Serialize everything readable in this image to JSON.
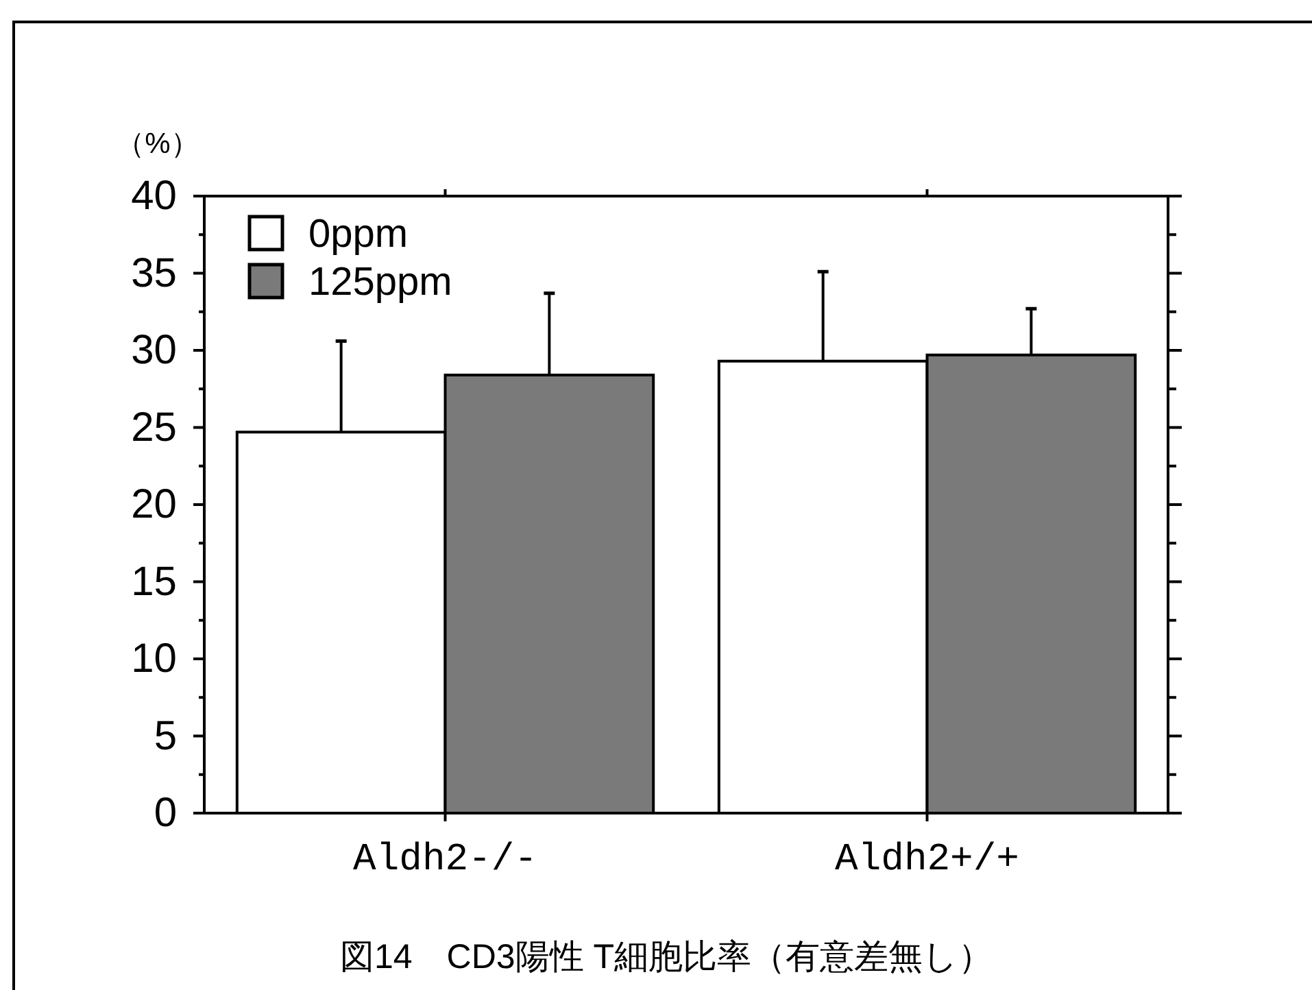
{
  "chart_data": {
    "type": "bar",
    "title": "図14　CD3陽性 T細胞比率（有意差無し）",
    "ylabel": "（%）",
    "categories": [
      "Aldh2-/-",
      "Aldh2+/+"
    ],
    "series": [
      {
        "name": "0ppm",
        "color": "#ffffff",
        "values": [
          24.7,
          29.3
        ],
        "errors": [
          [
            24.7,
            30.6
          ],
          [
            29.3,
            35.1
          ]
        ]
      },
      {
        "name": "125ppm",
        "color": "#7a7a7a",
        "values": [
          28.4,
          29.7
        ],
        "errors": [
          [
            28.4,
            33.7
          ],
          [
            29.7,
            32.7
          ]
        ]
      }
    ],
    "ylim": [
      0,
      40
    ],
    "yticks": [
      0,
      {
        "value": 2.5,
        "label": null
      },
      5,
      {
        "value": 7.5,
        "label": null
      },
      10,
      {
        "value": 12.5,
        "label": null
      },
      15,
      {
        "value": 17.5,
        "label": null
      },
      20,
      {
        "value": 22.5,
        "label": null
      },
      25,
      {
        "value": 27.5,
        "label": null
      },
      30,
      {
        "value": 32.5,
        "label": null
      },
      35,
      {
        "value": 37.5,
        "label": null
      },
      40
    ],
    "legend": "top left"
  }
}
